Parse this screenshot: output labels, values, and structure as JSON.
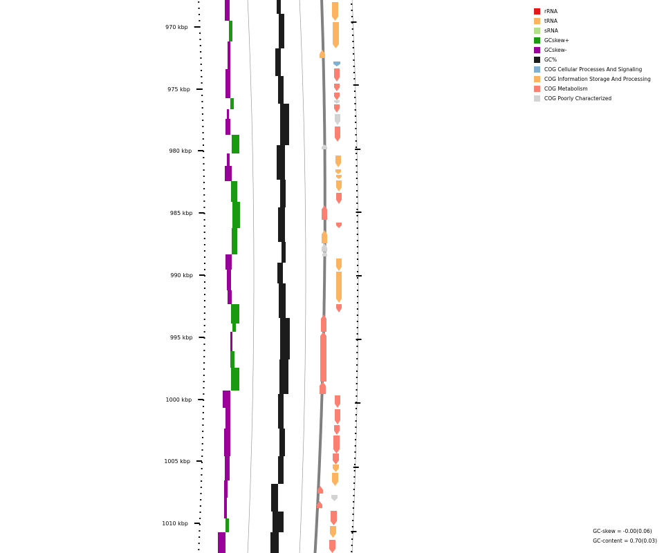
{
  "scale": {
    "unit": "kbp",
    "labels": [
      "970 kbp",
      "975 kbp",
      "980 kbp",
      "985 kbp",
      "990 kbp",
      "995 kbp",
      "1000 kbp",
      "1005 kbp",
      "1010 kbp"
    ]
  },
  "legend": [
    {
      "label": "rRNA",
      "color": "#e31a1c"
    },
    {
      "label": "tRNA",
      "color": "#fdb462"
    },
    {
      "label": "sRNA",
      "color": "#b2df8a"
    },
    {
      "label": "GCskew+",
      "color": "#1a9a10"
    },
    {
      "label": "GCskew-",
      "color": "#990099"
    },
    {
      "label": "GC%",
      "color": "#1c1c1c"
    },
    {
      "label": "COG Cellular Processes And Signaling",
      "color": "#80b1d3"
    },
    {
      "label": "COG Information Storage And Processing",
      "color": "#fdb462"
    },
    {
      "label": "COG Metabolism",
      "color": "#fb8072"
    },
    {
      "label": "COG Poorly Characterized",
      "color": "#d3d3d3"
    }
  ],
  "stats": {
    "gc_skew": "GC-skew = -0.00(0.06)",
    "gc_content": "GC-content = 0.70(0.03)"
  }
}
